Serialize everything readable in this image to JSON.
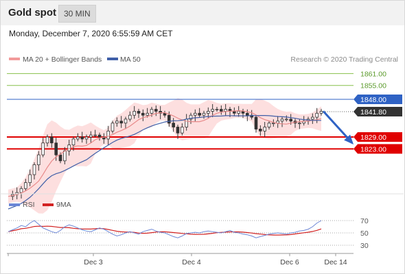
{
  "header": {
    "title": "Gold spot",
    "timeframe": "30 MIN"
  },
  "timestamp": "Monday, December 7, 2020 6:55:59 AM CET",
  "legend": {
    "ma20_bb": "MA 20 + Bollinger Bands",
    "ma50": "MA 50",
    "copyright": "Research © 2020 Trading Central",
    "rsi": "RSI",
    "rsi_ma": "9MA"
  },
  "colors": {
    "up_candle": "#ffffff",
    "down_candle": "#333333",
    "bollinger_band": "#fddcdc",
    "ma20": "#e88a8a",
    "ma50": "#3f5fa8",
    "support": "#e00000",
    "pivot": "#2f62c4",
    "resistance": "#86c04a",
    "last_price": "#333333",
    "arrow": "#2f62c4",
    "rsi": "#6b86d6",
    "rsi_ma": "#d22222"
  },
  "chart_data": [
    {
      "type": "candlestick",
      "instrument": "Gold spot",
      "timeframe": "30 MIN",
      "ylim": [
        1785,
        1870
      ],
      "x_ticks": [
        "Dec 3",
        "Dec 4",
        "Dec 6",
        "Dec 14"
      ],
      "levels": [
        {
          "label": "1861.00",
          "value": 1861.0,
          "kind": "resistance"
        },
        {
          "label": "1855.00",
          "value": 1855.0,
          "kind": "resistance"
        },
        {
          "label": "1848.00",
          "value": 1848.0,
          "kind": "pivot"
        },
        {
          "label": "1841.80",
          "value": 1841.8,
          "kind": "last"
        },
        {
          "label": "1829.00",
          "value": 1829.0,
          "kind": "support"
        },
        {
          "label": "1823.00",
          "value": 1823.0,
          "kind": "support"
        }
      ],
      "close_path": [
        1799,
        1800,
        1801,
        1803,
        1806,
        1810,
        1815,
        1820,
        1826,
        1829,
        1826,
        1820,
        1817,
        1822,
        1825,
        1828,
        1829,
        1828,
        1829,
        1830,
        1830,
        1829,
        1828,
        1832,
        1836,
        1837,
        1836,
        1838,
        1840,
        1842,
        1841,
        1840,
        1841,
        1843,
        1842,
        1841,
        1840,
        1836,
        1834,
        1831,
        1834,
        1838,
        1840,
        1841,
        1840,
        1841,
        1842,
        1843,
        1843,
        1842,
        1843,
        1842,
        1841,
        1842,
        1841,
        1840,
        1839,
        1833,
        1832,
        1834,
        1836,
        1836,
        1837,
        1838,
        1838,
        1837,
        1836,
        1836,
        1837,
        1838,
        1839,
        1841,
        1842
      ],
      "projection": {
        "from": 1842,
        "to": 1826,
        "direction": "down"
      },
      "series": [
        {
          "name": "MA 20 + Bollinger Bands"
        },
        {
          "name": "MA 50"
        }
      ]
    },
    {
      "type": "line",
      "title": "RSI",
      "ylim": [
        20,
        80
      ],
      "y_ticks": [
        70,
        50,
        30
      ],
      "rsi_path": [
        52,
        55,
        58,
        62,
        60,
        66,
        70,
        64,
        58,
        55,
        52,
        50,
        54,
        60,
        63,
        61,
        58,
        55,
        53,
        52,
        55,
        58,
        56,
        52,
        48,
        45,
        47,
        50,
        52,
        50,
        48,
        52,
        54,
        56,
        53,
        51,
        50,
        47,
        44,
        42,
        45,
        49,
        50,
        51,
        50,
        52,
        53,
        52,
        51,
        50,
        52,
        54,
        51,
        50,
        48,
        47,
        45,
        42,
        44,
        46,
        48,
        49,
        50,
        49,
        48,
        50,
        51,
        53,
        54,
        56,
        60,
        66,
        70
      ],
      "series": [
        {
          "name": "RSI"
        },
        {
          "name": "9MA"
        }
      ]
    }
  ]
}
